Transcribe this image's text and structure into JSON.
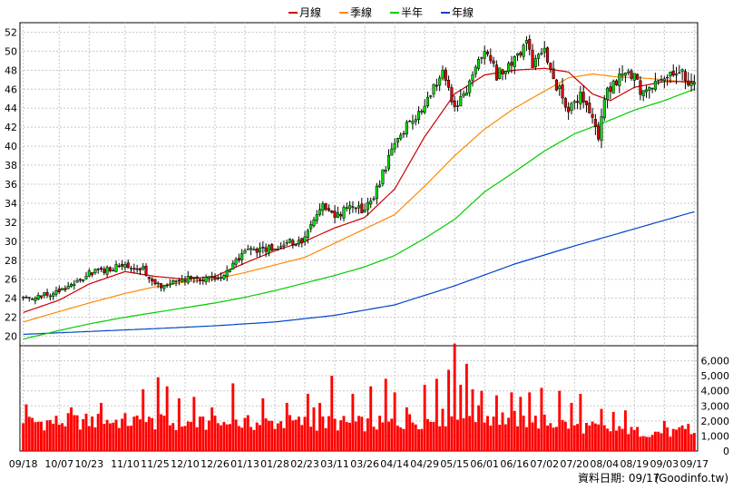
{
  "chart_data": {
    "type": "candlestick",
    "legend": [
      {
        "name": "月線",
        "color": "#cc0000"
      },
      {
        "name": "季線",
        "color": "#ff8800"
      },
      {
        "name": "半年",
        "color": "#00cc00"
      },
      {
        "name": "年線",
        "color": "#0044cc"
      }
    ],
    "price_axis": {
      "ylim": [
        19,
        53
      ],
      "ticks": [
        "20",
        "22",
        "24",
        "26",
        "28",
        "30",
        "32",
        "34",
        "36",
        "38",
        "40",
        "42",
        "44",
        "46",
        "48",
        "50",
        "52"
      ]
    },
    "volume_axis": {
      "ylim": [
        0,
        7000
      ],
      "ticks": [
        "0",
        "1,000",
        "2,000",
        "3,000",
        "4,000",
        "5,000",
        "6,000"
      ]
    },
    "x_ticks": [
      "09/18",
      "10/07",
      "10/23",
      "11/10",
      "11/25",
      "12/10",
      "12/26",
      "01/13",
      "01/28",
      "02/23",
      "03/11",
      "03/26",
      "04/14",
      "04/29",
      "05/15",
      "06/01",
      "06/16",
      "07/02",
      "07/20",
      "08/04",
      "08/19",
      "09/03",
      "09/17"
    ],
    "x_tick_index": [
      0,
      12,
      22,
      34,
      44,
      54,
      64,
      74,
      84,
      94,
      104,
      114,
      124,
      134,
      144,
      154,
      164,
      174,
      184,
      194,
      204,
      214,
      224
    ],
    "num_days": 225,
    "close_key": [
      [
        0,
        24
      ],
      [
        12,
        24.6
      ],
      [
        22,
        26.6
      ],
      [
        34,
        27.5
      ],
      [
        40,
        27
      ],
      [
        44,
        25.2
      ],
      [
        54,
        26.1
      ],
      [
        64,
        25.9
      ],
      [
        74,
        28.8
      ],
      [
        84,
        29.5
      ],
      [
        94,
        30.3
      ],
      [
        100,
        33.5
      ],
      [
        104,
        32.5
      ],
      [
        110,
        33.7
      ],
      [
        114,
        33.2
      ],
      [
        118,
        35.5
      ],
      [
        124,
        40.5
      ],
      [
        134,
        44.5
      ],
      [
        140,
        47.8
      ],
      [
        144,
        44.2
      ],
      [
        150,
        47
      ],
      [
        154,
        50.5
      ],
      [
        158,
        47.5
      ],
      [
        164,
        49
      ],
      [
        168,
        51
      ],
      [
        170,
        48.5
      ],
      [
        174,
        50
      ],
      [
        178,
        46.5
      ],
      [
        182,
        44
      ],
      [
        186,
        45.5
      ],
      [
        190,
        42.5
      ],
      [
        192,
        40.3
      ],
      [
        194,
        45.5
      ],
      [
        198,
        47
      ],
      [
        202,
        48.2
      ],
      [
        206,
        46
      ],
      [
        210,
        45.8
      ],
      [
        214,
        47.5
      ],
      [
        218,
        48.2
      ],
      [
        222,
        46.7
      ],
      [
        224,
        47
      ]
    ],
    "ma_month_key": [
      [
        0,
        22.5
      ],
      [
        12,
        23.8
      ],
      [
        22,
        25.5
      ],
      [
        34,
        26.8
      ],
      [
        44,
        26.3
      ],
      [
        54,
        26
      ],
      [
        64,
        26.3
      ],
      [
        74,
        27.7
      ],
      [
        84,
        29
      ],
      [
        94,
        30
      ],
      [
        104,
        31.4
      ],
      [
        114,
        32.5
      ],
      [
        124,
        35.5
      ],
      [
        134,
        41
      ],
      [
        144,
        45.5
      ],
      [
        154,
        47.5
      ],
      [
        164,
        48
      ],
      [
        174,
        48.2
      ],
      [
        182,
        47.8
      ],
      [
        190,
        45.5
      ],
      [
        196,
        44.8
      ],
      [
        204,
        46.2
      ],
      [
        214,
        46.8
      ],
      [
        224,
        46.8
      ]
    ],
    "ma_quarter_key": [
      [
        0,
        21.5
      ],
      [
        12,
        22.6
      ],
      [
        22,
        23.5
      ],
      [
        34,
        24.5
      ],
      [
        44,
        25.2
      ],
      [
        54,
        25.7
      ],
      [
        64,
        26
      ],
      [
        74,
        26.7
      ],
      [
        84,
        27.5
      ],
      [
        94,
        28.3
      ],
      [
        104,
        29.8
      ],
      [
        114,
        31.3
      ],
      [
        124,
        32.8
      ],
      [
        134,
        35.8
      ],
      [
        144,
        39
      ],
      [
        154,
        41.8
      ],
      [
        164,
        44
      ],
      [
        174,
        45.8
      ],
      [
        182,
        47.2
      ],
      [
        190,
        47.6
      ],
      [
        198,
        47.3
      ],
      [
        206,
        47.2
      ],
      [
        214,
        47
      ],
      [
        224,
        46.6
      ]
    ],
    "ma_half_key": [
      [
        0,
        19.7
      ],
      [
        12,
        20.6
      ],
      [
        22,
        21.3
      ],
      [
        34,
        22
      ],
      [
        44,
        22.5
      ],
      [
        54,
        23
      ],
      [
        64,
        23.5
      ],
      [
        74,
        24.1
      ],
      [
        84,
        24.8
      ],
      [
        94,
        25.6
      ],
      [
        104,
        26.4
      ],
      [
        114,
        27.3
      ],
      [
        124,
        28.5
      ],
      [
        134,
        30.3
      ],
      [
        144,
        32.3
      ],
      [
        154,
        35.2
      ],
      [
        164,
        37.3
      ],
      [
        174,
        39.5
      ],
      [
        184,
        41.3
      ],
      [
        194,
        42.5
      ],
      [
        204,
        43.8
      ],
      [
        214,
        44.8
      ],
      [
        224,
        46
      ]
    ],
    "ma_year_key": [
      [
        0,
        20.2
      ],
      [
        22,
        20.5
      ],
      [
        44,
        20.8
      ],
      [
        64,
        21.1
      ],
      [
        84,
        21.5
      ],
      [
        104,
        22.2
      ],
      [
        124,
        23.3
      ],
      [
        144,
        25.3
      ],
      [
        164,
        27.6
      ],
      [
        184,
        29.5
      ],
      [
        204,
        31.3
      ],
      [
        224,
        33.1
      ]
    ],
    "vol_base_key": [
      [
        0,
        1900
      ],
      [
        30,
        2000
      ],
      [
        60,
        1800
      ],
      [
        90,
        1900
      ],
      [
        120,
        1800
      ],
      [
        150,
        2400
      ],
      [
        180,
        1800
      ],
      [
        200,
        1300
      ],
      [
        224,
        1200
      ]
    ],
    "vol_spikes": [
      [
        1,
        3100
      ],
      [
        16,
        2900
      ],
      [
        26,
        3200
      ],
      [
        40,
        4100
      ],
      [
        45,
        4900
      ],
      [
        48,
        4300
      ],
      [
        52,
        3500
      ],
      [
        57,
        3600
      ],
      [
        63,
        2900
      ],
      [
        70,
        4500
      ],
      [
        80,
        3500
      ],
      [
        88,
        3200
      ],
      [
        95,
        3800
      ],
      [
        97,
        2900
      ],
      [
        99,
        3200
      ],
      [
        103,
        5000
      ],
      [
        110,
        3800
      ],
      [
        116,
        4300
      ],
      [
        121,
        4800
      ],
      [
        124,
        3900
      ],
      [
        128,
        2900
      ],
      [
        134,
        4400
      ],
      [
        138,
        4800
      ],
      [
        142,
        5400
      ],
      [
        146,
        4400
      ],
      [
        148,
        5800
      ],
      [
        150,
        4100
      ],
      [
        153,
        4000
      ],
      [
        158,
        3700
      ],
      [
        163,
        3900
      ],
      [
        166,
        3600
      ],
      [
        169,
        3900
      ],
      [
        173,
        4200
      ],
      [
        179,
        4000
      ],
      [
        183,
        3200
      ],
      [
        186,
        3800
      ],
      [
        193,
        2800
      ],
      [
        197,
        2600
      ],
      [
        201,
        2700
      ],
      [
        214,
        2000
      ],
      [
        220,
        1700
      ],
      [
        222,
        1800
      ]
    ],
    "vol_extremes": [
      {
        "index": 144,
        "value": 7200
      },
      {
        "index": 148,
        "value": 5800
      }
    ]
  },
  "footer": {
    "label": "資料日期: 09/17",
    "source": "(Goodinfo.tw)"
  }
}
